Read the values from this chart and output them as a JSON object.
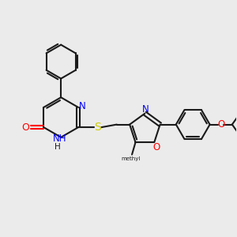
{
  "background_color": "#ebebeb",
  "bond_color": "#1a1a1a",
  "nitrogen_color": "#0000ff",
  "oxygen_color": "#ff0000",
  "sulfur_color": "#cccc00",
  "figsize": [
    3.0,
    3.0
  ],
  "dpi": 100,
  "xlim": [
    0,
    10
  ],
  "ylim": [
    0,
    10
  ]
}
